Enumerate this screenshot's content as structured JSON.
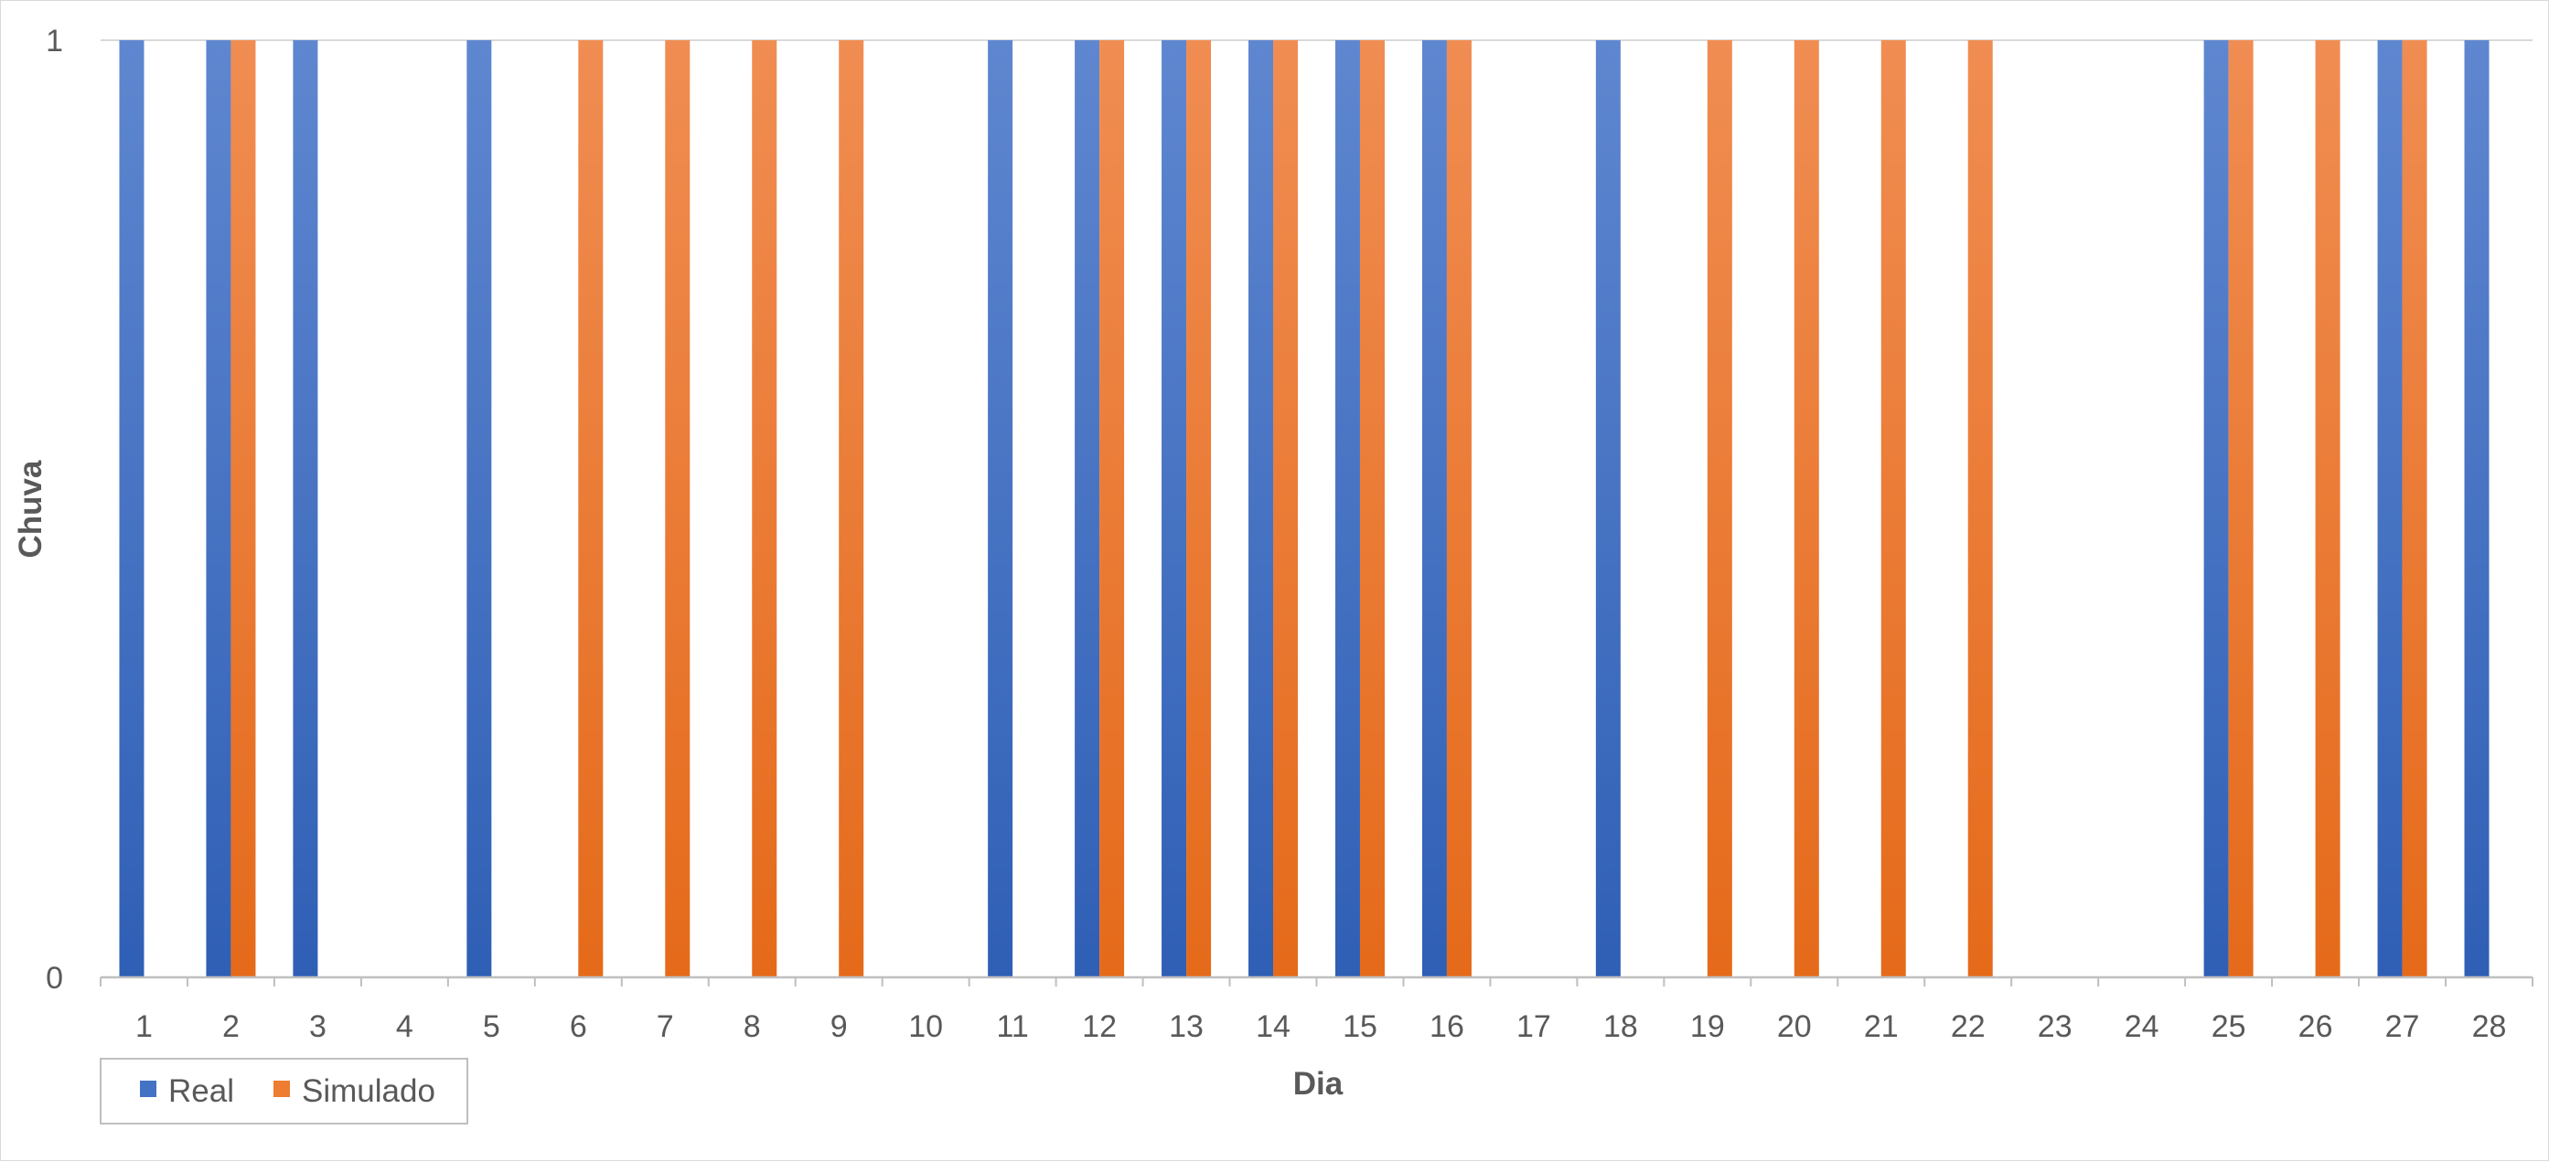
{
  "chart_data": {
    "type": "bar",
    "title": "",
    "xlabel": "Dia",
    "ylabel": "Chuva",
    "ylim": [
      0,
      1
    ],
    "y_ticks": [
      "0",
      "1"
    ],
    "categories": [
      "1",
      "2",
      "3",
      "4",
      "5",
      "6",
      "7",
      "8",
      "9",
      "10",
      "11",
      "12",
      "13",
      "14",
      "15",
      "16",
      "17",
      "18",
      "19",
      "20",
      "21",
      "22",
      "23",
      "24",
      "25",
      "26",
      "27",
      "28"
    ],
    "series": [
      {
        "name": "Real",
        "color": "#4472c4",
        "values": [
          1,
          1,
          1,
          0,
          1,
          0,
          0,
          0,
          0,
          0,
          1,
          1,
          1,
          1,
          1,
          1,
          0,
          1,
          0,
          0,
          0,
          0,
          0,
          0,
          1,
          0,
          1,
          1
        ]
      },
      {
        "name": "Simulado",
        "color": "#ed7d31",
        "values": [
          0,
          1,
          0,
          0,
          0,
          1,
          1,
          1,
          1,
          0,
          0,
          1,
          1,
          1,
          1,
          1,
          0,
          0,
          1,
          1,
          1,
          1,
          0,
          0,
          1,
          1,
          1,
          0
        ]
      }
    ],
    "grid": true,
    "legend_position": "bottom-left"
  }
}
